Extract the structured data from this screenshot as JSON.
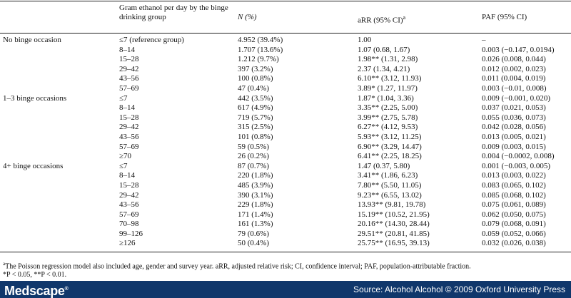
{
  "table": {
    "headers": {
      "gram": "Gram ethanol per day by the binge drinking group",
      "n": "N (%)",
      "arr": "aRR (95% CI)",
      "arr_sup": "a",
      "paf": "PAF (95% CI)"
    },
    "rows": [
      {
        "group": "No binge occasion",
        "gram": "≤7 (reference group)",
        "n": "4.952 (39.4%)",
        "arr": "1.00",
        "paf": "–"
      },
      {
        "group": "",
        "gram": "8–14",
        "n": "1.707 (13.6%)",
        "arr": "1.07 (0.68, 1.67)",
        "paf": "0.003 (−0.147, 0.0194)"
      },
      {
        "group": "",
        "gram": "15–28",
        "n": "1.212 (9.7%)",
        "arr": "1.98** (1.31, 2.98)",
        "paf": "0.026 (0.008, 0.044)"
      },
      {
        "group": "",
        "gram": "29–42",
        "n": "397 (3.2%)",
        "arr": "2.37 (1.34, 4.21)",
        "paf": "0.012 (0.002, 0.023)"
      },
      {
        "group": "",
        "gram": "43–56",
        "n": "100 (0.8%)",
        "arr": "6.10** (3.12, 11.93)",
        "paf": "0.011 (0.004, 0.019)"
      },
      {
        "group": "",
        "gram": "57–69",
        "n": "47 (0.4%)",
        "arr": "3.89* (1.27, 11.97)",
        "paf": "0.003 (−0.01, 0.008)"
      },
      {
        "group": "1–3 binge occasions",
        "gram": "≤7",
        "n": "442 (3.5%)",
        "arr": "1.87* (1.04, 3.36)",
        "paf": "0.009 (−0.001, 0.020)"
      },
      {
        "group": "",
        "gram": "8–14",
        "n": "617 (4.9%)",
        "arr": "3.35** (2.25, 5.00)",
        "paf": "0.037 (0.021, 0.053)"
      },
      {
        "group": "",
        "gram": "15–28",
        "n": "719 (5.7%)",
        "arr": "3.99** (2.75, 5.78)",
        "paf": "0.055 (0.036, 0.073)"
      },
      {
        "group": "",
        "gram": "29–42",
        "n": "315 (2.5%)",
        "arr": "6.27** (4.12, 9.53)",
        "paf": "0.042 (0.028, 0.056)"
      },
      {
        "group": "",
        "gram": "43–56",
        "n": "101 (0.8%)",
        "arr": "5.93** (3.12, 11.25)",
        "paf": "0.013 (0.005, 0.021)"
      },
      {
        "group": "",
        "gram": "57–69",
        "n": "59 (0.5%)",
        "arr": "6.90** (3.29, 14.47)",
        "paf": "0.009 (0.003, 0.015)"
      },
      {
        "group": "",
        "gram": "≥70",
        "n": "26 (0.2%)",
        "arr": "6.41** (2.25, 18.25)",
        "paf": "0.004 (−0.0002, 0.008)"
      },
      {
        "group": "4+ binge occasions",
        "gram": "≤7",
        "n": "87 (0.7%)",
        "arr": "1.47 (0.37, 5.80)",
        "paf": "0.001 (−0.003, 0.005)"
      },
      {
        "group": "",
        "gram": "8–14",
        "n": "220 (1.8%)",
        "arr": "3.41** (1.86, 6.23)",
        "paf": "0.013 (0.003, 0.022)"
      },
      {
        "group": "",
        "gram": "15–28",
        "n": "485 (3.9%)",
        "arr": "7.80** (5.50, 11.05)",
        "paf": "0.083 (0.065, 0.102)"
      },
      {
        "group": "",
        "gram": "29–42",
        "n": "390 (3.1%)",
        "arr": "9.23** (6.55, 13.02)",
        "paf": "0.085 (0.068, 0.102)"
      },
      {
        "group": "",
        "gram": "43–56",
        "n": "229 (1.8%)",
        "arr": "13.93** (9.81, 19.78)",
        "paf": "0.075 (0.061, 0.089)"
      },
      {
        "group": "",
        "gram": "57–69",
        "n": "171 (1.4%)",
        "arr": "15.19** (10.52, 21.95)",
        "paf": "0.062 (0.050, 0.075)"
      },
      {
        "group": "",
        "gram": "70–98",
        "n": "161 (1.3%)",
        "arr": "20.16** (14.30, 28.44)",
        "paf": "0.079 (0.068, 0.091)"
      },
      {
        "group": "",
        "gram": "99–126",
        "n": "79 (0.6%)",
        "arr": "29.51** (20.81, 41.85)",
        "paf": "0.059 (0.052, 0.066)"
      },
      {
        "group": "",
        "gram": "≥126",
        "n": "50 (0.4%)",
        "arr": "25.75** (16.95, 39.13)",
        "paf": "0.032 (0.026, 0.038)"
      }
    ]
  },
  "notes": {
    "footnote_marker": "a",
    "footnote_a": "The Poisson regression model also included age, gender and survey year. aRR, adjusted relative risk; CI, confidence interval; PAF, population-attributable fraction.",
    "significance": "*P < 0.05, **P < 0.01."
  },
  "footer": {
    "logo": "Medscape",
    "logo_mark": "®",
    "source": "Source: Alcohol Alcohol © 2009 Oxford University Press",
    "background_color": "#10376b"
  }
}
